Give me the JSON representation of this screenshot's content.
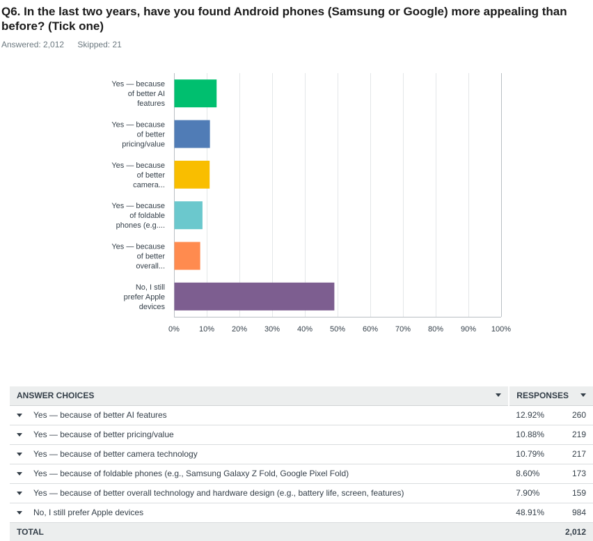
{
  "question": {
    "title": "Q6. In the last two years, have you found Android phones (Samsung or Google) more appealing than before? (Tick one)",
    "answered": "Answered: 2,012",
    "skipped": "Skipped: 21"
  },
  "colors": {
    "grid": "#e3e6e8",
    "axis": "#b8bec3",
    "bars": [
      "#00bf6f",
      "#507cb6",
      "#f9be00",
      "#6bc8cd",
      "#ff8b4f",
      "#7d5e90"
    ]
  },
  "chart_data": {
    "type": "bar",
    "orientation": "horizontal",
    "categories": [
      [
        "Yes — because",
        "of better AI",
        "features"
      ],
      [
        "Yes — because",
        "of better",
        "pricing/value"
      ],
      [
        "Yes — because",
        "of better",
        "camera..."
      ],
      [
        "Yes — because",
        "of foldable",
        "phones (e.g...."
      ],
      [
        "Yes — because",
        "of better",
        "overall..."
      ],
      [
        "No, I still",
        "prefer Apple",
        "devices"
      ]
    ],
    "values": [
      12.92,
      10.88,
      10.79,
      8.6,
      7.9,
      48.91
    ],
    "xlim": [
      0,
      100
    ],
    "xticks": [
      "0%",
      "10%",
      "20%",
      "30%",
      "40%",
      "50%",
      "60%",
      "70%",
      "80%",
      "90%",
      "100%"
    ],
    "grid": true,
    "title": "",
    "xlabel": "",
    "ylabel": ""
  },
  "table": {
    "header": {
      "choices": "ANSWER CHOICES",
      "responses": "RESPONSES"
    },
    "rows": [
      {
        "choice": "Yes — because of better AI features",
        "percent": "12.92%",
        "count": "260"
      },
      {
        "choice": "Yes — because of better pricing/value",
        "percent": "10.88%",
        "count": "219"
      },
      {
        "choice": "Yes — because of better camera technology",
        "percent": "10.79%",
        "count": "217"
      },
      {
        "choice": "Yes — because of foldable phones (e.g., Samsung Galaxy Z Fold, Google Pixel Fold)",
        "percent": "8.60%",
        "count": "173"
      },
      {
        "choice": "Yes — because of better overall technology and hardware design (e.g., battery life, screen, features)",
        "percent": "7.90%",
        "count": "159"
      },
      {
        "choice": "No, I still prefer Apple devices",
        "percent": "48.91%",
        "count": "984"
      }
    ],
    "total": {
      "label": "TOTAL",
      "count": "2,012"
    }
  }
}
